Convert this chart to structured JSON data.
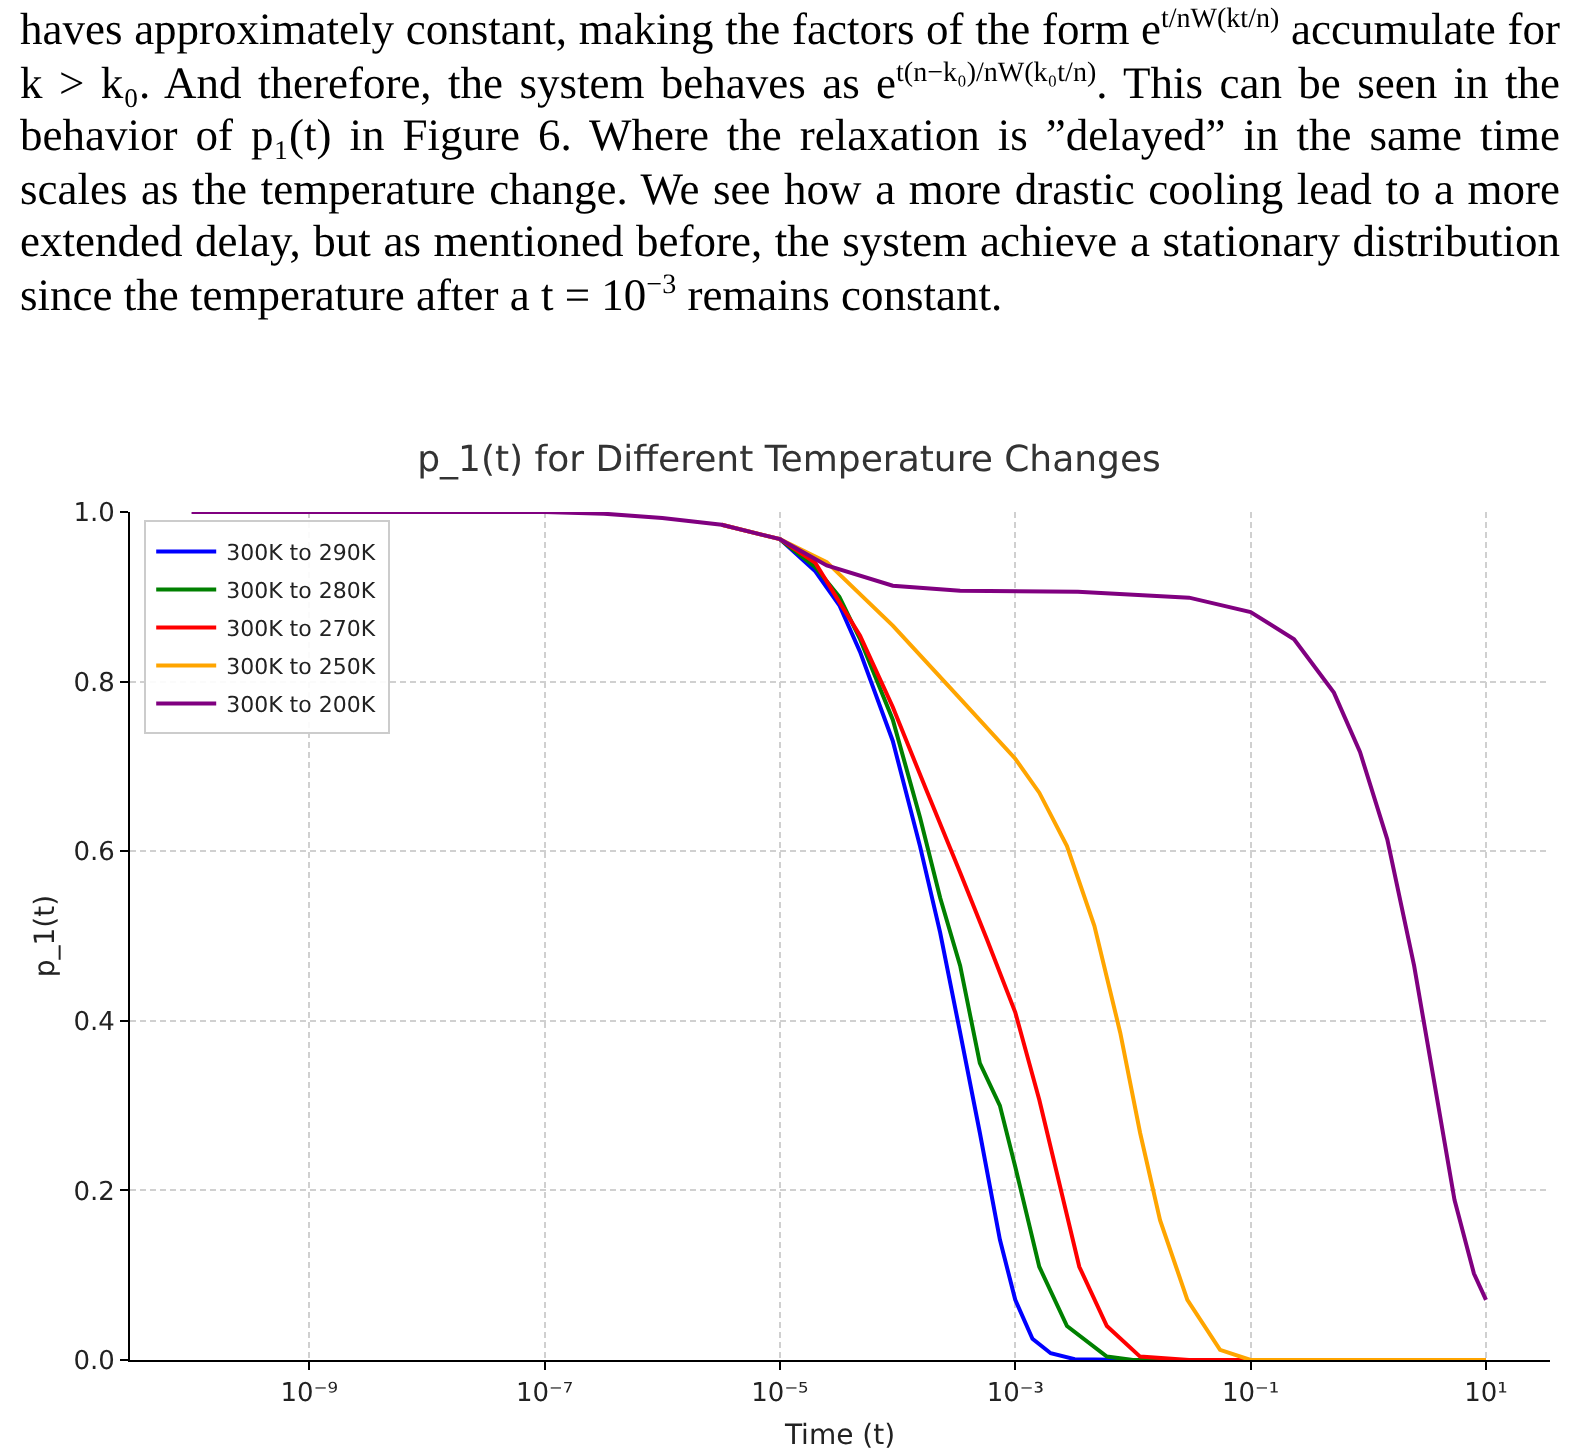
{
  "chart_data": {
    "type": "line",
    "title": "p_1(t) for Different Temperature Changes",
    "xlabel": "Time (t)",
    "ylabel": "p_1(t)",
    "annotations": [
      "haves approximately constant, making the factors of the form e$^{t/nW(kt/n)}$ accumulate for k > k₀. And therefore, the system behaves as e$^{t(n−k₀)/nW(k₀t/n)}$. This can be seen in the behavior of p₁(t) in Figure 6. Where the relaxation is ”delayed” in the same time scales as the temperature change. We see how a more drastic cooling lead to a more extended delay, but as mentioned before, the system achieve a stationary distribution since the temperature after a t = 10$^{−3}$ remains constant."
    ],
    "log": "x",
    "grid": true,
    "legend": "top left",
    "marker": "none",
    "line_style": "solid",
    "xlim": [
      3e-11,
      35
    ],
    "xticks": [
      {
        "value": 1e-09,
        "label": "10⁻⁹"
      },
      {
        "value": 1e-07,
        "label": "10⁻⁷"
      },
      {
        "value": 1e-05,
        "label": "10⁻⁵"
      },
      {
        "value": 0.001,
        "label": "10⁻³"
      },
      {
        "value": 0.1,
        "label": "10⁻¹"
      },
      {
        "value": 10,
        "label": "10¹"
      }
    ],
    "ylim": [
      0,
      1
    ],
    "yticks": [
      {
        "value": 0,
        "label": "0.0"
      },
      {
        "value": 0.2,
        "label": "0.2"
      },
      {
        "value": 0.4,
        "label": "0.4"
      },
      {
        "value": 0.6,
        "label": "0.6"
      },
      {
        "value": 0.8,
        "label": "0.8"
      },
      {
        "value": 1,
        "label": "1.0"
      }
    ],
    "series": [
      {
        "name": "300K to 290K",
        "color": "#0000ff",
        "x": [
          1e-05,
          2e-05,
          3.2e-05,
          4.8e-05,
          9.1e-05,
          0.000155,
          0.00023,
          0.00034,
          0.0005,
          0.00074,
          0.001,
          0.0014,
          0.002,
          0.0032,
          0.01,
          10
        ],
        "values": [
          0.968,
          0.93,
          0.89,
          0.835,
          0.73,
          0.606,
          0.504,
          0.386,
          0.268,
          0.142,
          0.071,
          0.025,
          0.008,
          0.001,
          0,
          0
        ]
      },
      {
        "name": "300K to 280K",
        "color": "#008000",
        "x": [
          1e-05,
          2e-05,
          3.2e-05,
          4.8e-05,
          9.1e-05,
          0.000155,
          0.00023,
          0.00034,
          0.0005,
          0.00074,
          0.001,
          0.0016,
          0.00275,
          0.006,
          0.01,
          10
        ],
        "values": [
          0.968,
          0.935,
          0.9,
          0.85,
          0.755,
          0.64,
          0.545,
          0.465,
          0.35,
          0.3,
          0.228,
          0.11,
          0.04,
          0.004,
          0,
          0
        ]
      },
      {
        "name": "300K to 270K",
        "color": "#ff0000",
        "x": [
          3.2e-06,
          1e-05,
          2e-05,
          4.8e-05,
          9.1e-05,
          0.000178,
          0.00034,
          0.000575,
          0.001,
          0.0016,
          0.0024,
          0.0035,
          0.006,
          0.0115,
          0.03,
          10
        ],
        "values": [
          0.985,
          0.968,
          0.94,
          0.854,
          0.77,
          0.67,
          0.575,
          0.496,
          0.41,
          0.307,
          0.205,
          0.11,
          0.04,
          0.004,
          0,
          0
        ]
      },
      {
        "name": "300K to 250K",
        "color": "#ffa500",
        "x": [
          3.2e-06,
          1e-05,
          2.5e-05,
          9.1e-05,
          0.00034,
          0.001,
          0.0016,
          0.00275,
          0.0047,
          0.0078,
          0.0115,
          0.017,
          0.029,
          0.055,
          0.1,
          10
        ],
        "values": [
          0.985,
          0.968,
          0.941,
          0.866,
          0.78,
          0.709,
          0.669,
          0.606,
          0.512,
          0.386,
          0.268,
          0.165,
          0.071,
          0.012,
          0,
          0
        ]
      },
      {
        "name": "300K to 200K",
        "color": "#800080",
        "x": [
          1e-10,
          1e-07,
          3.2e-07,
          1e-06,
          3.2e-06,
          1e-05,
          2.5e-05,
          9.1e-05,
          0.00034,
          0.0034,
          0.03,
          0.1,
          0.234,
          0.51,
          0.85,
          1.45,
          2.45,
          3.6,
          5.4,
          7.9,
          10
        ],
        "values": [
          1,
          1,
          0.998,
          0.993,
          0.985,
          0.968,
          0.937,
          0.913,
          0.907,
          0.906,
          0.899,
          0.882,
          0.85,
          0.787,
          0.717,
          0.614,
          0.465,
          0.331,
          0.189,
          0.102,
          0.071
        ]
      }
    ]
  }
}
